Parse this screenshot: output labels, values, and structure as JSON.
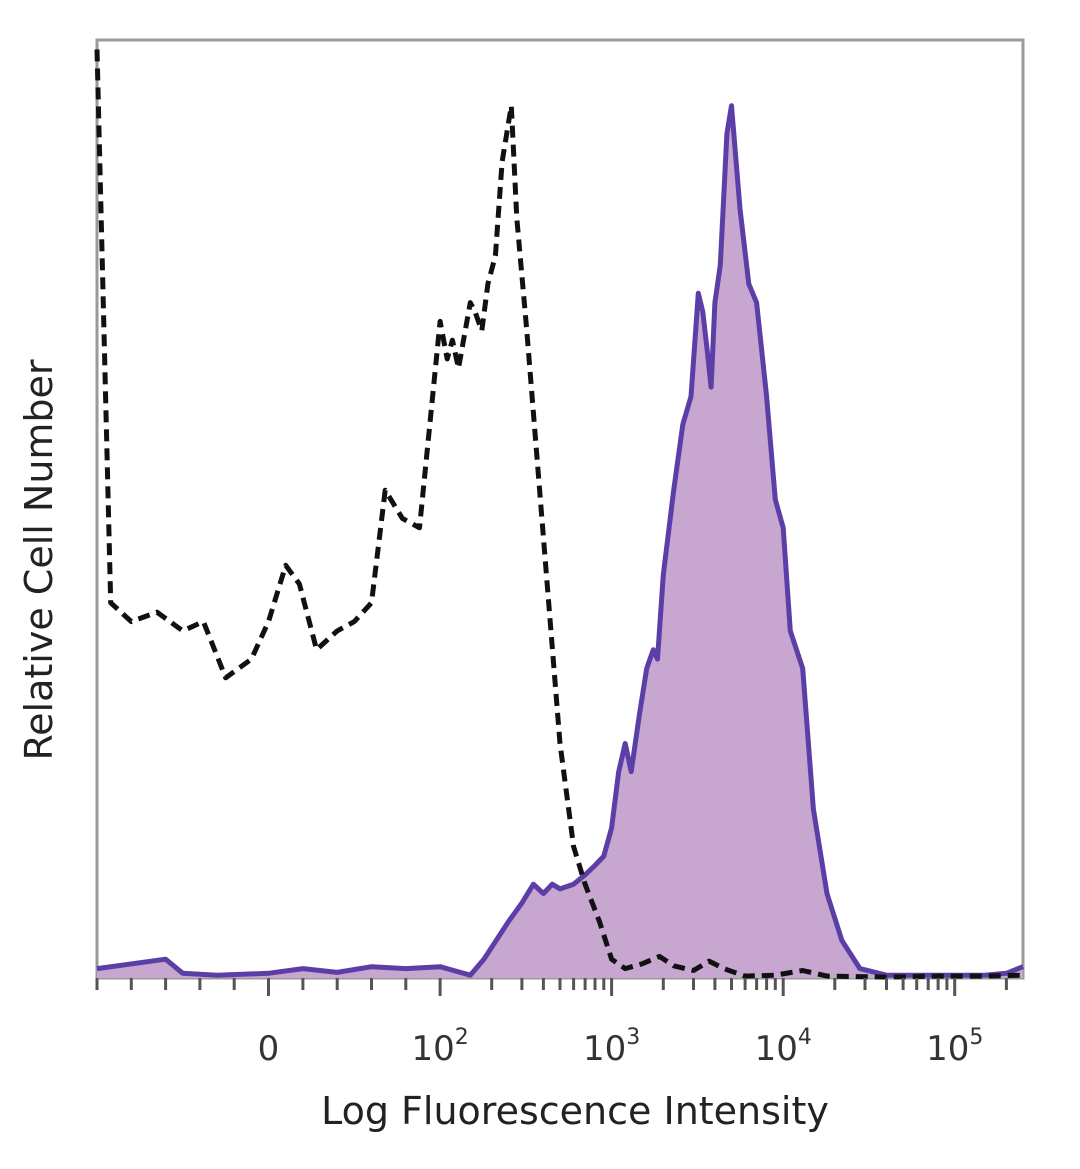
{
  "chart_data": {
    "type": "area",
    "xlabel": "Log Fluorescence Intensity",
    "ylabel": "Relative Cell Number",
    "x_scale": "biexponential",
    "x_ticks": [
      {
        "value": 0,
        "label": "0",
        "exp": ""
      },
      {
        "value": 100,
        "label": "10",
        "exp": "2"
      },
      {
        "value": 1000,
        "label": "10",
        "exp": "3"
      },
      {
        "value": 10000,
        "label": "10",
        "exp": "4"
      },
      {
        "value": 100000,
        "label": "10",
        "exp": "5"
      }
    ],
    "xlim": [
      -100,
      250000
    ],
    "ylim": [
      0,
      100
    ],
    "grid": false,
    "legend": "none",
    "series": [
      {
        "style": "filled-solid",
        "line_color": "#5b3fa6",
        "fill_color": "#c7a6cf",
        "points": [
          [
            -100,
            1
          ],
          [
            -60,
            2
          ],
          [
            -50,
            0.5
          ],
          [
            -30,
            0.3
          ],
          [
            0,
            0.5
          ],
          [
            20,
            1
          ],
          [
            40,
            0.6
          ],
          [
            60,
            1.2
          ],
          [
            80,
            1
          ],
          [
            100,
            1.2
          ],
          [
            120,
            0.8
          ],
          [
            150,
            0.3
          ],
          [
            180,
            2
          ],
          [
            250,
            6
          ],
          [
            300,
            8
          ],
          [
            350,
            10
          ],
          [
            400,
            9
          ],
          [
            450,
            10
          ],
          [
            500,
            9.5
          ],
          [
            600,
            10
          ],
          [
            700,
            11
          ],
          [
            800,
            12
          ],
          [
            900,
            13
          ],
          [
            1000,
            16
          ],
          [
            1100,
            22
          ],
          [
            1200,
            25
          ],
          [
            1300,
            22
          ],
          [
            1450,
            28
          ],
          [
            1600,
            33
          ],
          [
            1750,
            35
          ],
          [
            1850,
            34
          ],
          [
            2000,
            43
          ],
          [
            2300,
            52
          ],
          [
            2600,
            59
          ],
          [
            2900,
            62
          ],
          [
            3200,
            73
          ],
          [
            3400,
            71
          ],
          [
            3600,
            67
          ],
          [
            3800,
            63
          ],
          [
            4000,
            72
          ],
          [
            4300,
            76
          ],
          [
            4700,
            90
          ],
          [
            5000,
            93
          ],
          [
            5600,
            82
          ],
          [
            6300,
            74
          ],
          [
            7000,
            72
          ],
          [
            8000,
            62
          ],
          [
            9000,
            51
          ],
          [
            10000,
            48
          ],
          [
            11000,
            37
          ],
          [
            13000,
            33
          ],
          [
            15000,
            18
          ],
          [
            18000,
            9
          ],
          [
            22000,
            4
          ],
          [
            28000,
            1
          ],
          [
            40000,
            0.3
          ],
          [
            80000,
            0.3
          ],
          [
            150000,
            0.3
          ],
          [
            200000,
            0.5
          ],
          [
            250000,
            1.2
          ]
        ]
      },
      {
        "style": "dashed",
        "line_color": "#111111",
        "points": [
          [
            -100,
            99
          ],
          [
            -92,
            40
          ],
          [
            -80,
            38
          ],
          [
            -65,
            39
          ],
          [
            -50,
            37
          ],
          [
            -38,
            38
          ],
          [
            -25,
            32
          ],
          [
            -10,
            34
          ],
          [
            0,
            38
          ],
          [
            10,
            44
          ],
          [
            18,
            42
          ],
          [
            28,
            35
          ],
          [
            40,
            37
          ],
          [
            50,
            38
          ],
          [
            60,
            40
          ],
          [
            68,
            52
          ],
          [
            78,
            49
          ],
          [
            88,
            48
          ],
          [
            100,
            70
          ],
          [
            110,
            66
          ],
          [
            118,
            68
          ],
          [
            128,
            65
          ],
          [
            140,
            69
          ],
          [
            150,
            72
          ],
          [
            160,
            71
          ],
          [
            175,
            69
          ],
          [
            190,
            74
          ],
          [
            210,
            77
          ],
          [
            230,
            87
          ],
          [
            260,
            93
          ],
          [
            280,
            81
          ],
          [
            320,
            69
          ],
          [
            400,
            47
          ],
          [
            500,
            25
          ],
          [
            600,
            14
          ],
          [
            700,
            10
          ],
          [
            850,
            6
          ],
          [
            1000,
            2
          ],
          [
            1200,
            1
          ],
          [
            1500,
            1.5
          ],
          [
            1900,
            2.3
          ],
          [
            2300,
            1.3
          ],
          [
            3000,
            0.8
          ],
          [
            3700,
            1.8
          ],
          [
            4500,
            1
          ],
          [
            6000,
            0.2
          ],
          [
            9000,
            0.3
          ],
          [
            13000,
            0.8
          ],
          [
            18000,
            0.2
          ],
          [
            40000,
            0.1
          ],
          [
            80000,
            0.2
          ],
          [
            150000,
            0.2
          ],
          [
            250000,
            0.3
          ]
        ]
      }
    ]
  }
}
